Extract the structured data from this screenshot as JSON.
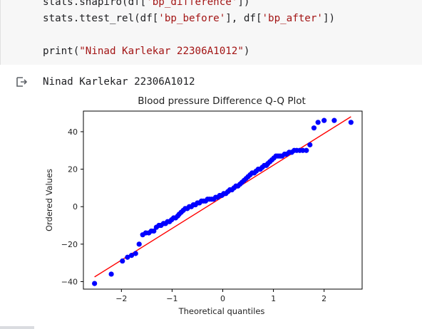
{
  "code_cell": {
    "lines": [
      {
        "pre": "stats.shapiro(df[",
        "str1": "'bp_difference'",
        "post": "])"
      },
      {
        "pre": "stats.ttest_rel(df[",
        "str1": "'bp_before'",
        "mid": "], df[",
        "str2": "'bp_after'",
        "post": "])"
      },
      {
        "pre": "print(",
        "str1": "\"Ninad Karlekar 22306A1012\"",
        "post": ")"
      }
    ]
  },
  "output": {
    "icon": "output-arrow-icon",
    "text": "Ninad Karlekar 22306A1012"
  },
  "chart_data": {
    "type": "scatter",
    "title": "Blood pressure Difference Q-Q Plot",
    "xlabel": "Theoretical quantiles",
    "ylabel": "Ordered Values",
    "xlim": [
      -2.75,
      2.75
    ],
    "ylim": [
      -44,
      51
    ],
    "xticks": [
      -2,
      -1,
      0,
      1,
      2
    ],
    "xtick_labels": [
      "−2",
      "−1",
      "0",
      "1",
      "2"
    ],
    "yticks": [
      -40,
      -20,
      0,
      20,
      40
    ],
    "ytick_labels": [
      "−40",
      "−20",
      "0",
      "20",
      "40"
    ],
    "grid": false,
    "point_color": "#0000ff",
    "line_color": "#ff0000",
    "fit_line": {
      "x": [
        -2.53,
        2.53
      ],
      "y": [
        -37.5,
        48.0
      ]
    },
    "points": {
      "x": [
        -2.53,
        -2.2,
        -1.98,
        -1.88,
        -1.8,
        -1.72,
        -1.65,
        -1.58,
        -1.52,
        -1.46,
        -1.41,
        -1.36,
        -1.31,
        -1.26,
        -1.22,
        -1.17,
        -1.13,
        -1.09,
        -1.05,
        -1.01,
        -0.97,
        -0.93,
        -0.89,
        -0.86,
        -0.82,
        -0.78,
        -0.74,
        -0.7,
        -0.66,
        -0.62,
        -0.58,
        -0.54,
        -0.5,
        -0.46,
        -0.42,
        -0.38,
        -0.34,
        -0.3,
        -0.26,
        -0.22,
        -0.18,
        -0.14,
        -0.1,
        -0.06,
        -0.02,
        0.02,
        0.06,
        0.1,
        0.14,
        0.18,
        0.22,
        0.26,
        0.3,
        0.34,
        0.38,
        0.42,
        0.46,
        0.5,
        0.54,
        0.58,
        0.62,
        0.66,
        0.7,
        0.74,
        0.78,
        0.82,
        0.86,
        0.89,
        0.93,
        0.97,
        1.01,
        1.05,
        1.09,
        1.13,
        1.17,
        1.22,
        1.26,
        1.31,
        1.36,
        1.41,
        1.46,
        1.52,
        1.58,
        1.65,
        1.72,
        1.8,
        1.88,
        2.0,
        2.2,
        2.53
      ],
      "y": [
        -41,
        -36,
        -29,
        -27,
        -26,
        -25,
        -20,
        -15,
        -14,
        -14,
        -13,
        -13,
        -11,
        -10,
        -10,
        -9,
        -9,
        -8,
        -8,
        -7,
        -6,
        -6,
        -5,
        -4,
        -3,
        -2,
        -1,
        -1,
        0,
        0,
        1,
        1,
        2,
        2,
        3,
        3,
        3,
        4,
        4,
        4,
        4,
        5,
        5,
        6,
        6,
        7,
        7,
        8,
        9,
        9,
        10,
        11,
        11,
        12,
        13,
        14,
        15,
        16,
        17,
        18,
        18,
        19,
        20,
        20,
        21,
        22,
        22,
        23,
        24,
        25,
        26,
        27,
        27,
        27,
        27,
        28,
        28,
        29,
        29,
        30,
        30,
        30,
        30,
        30,
        33,
        42,
        45,
        46,
        46,
        45
      ]
    }
  }
}
